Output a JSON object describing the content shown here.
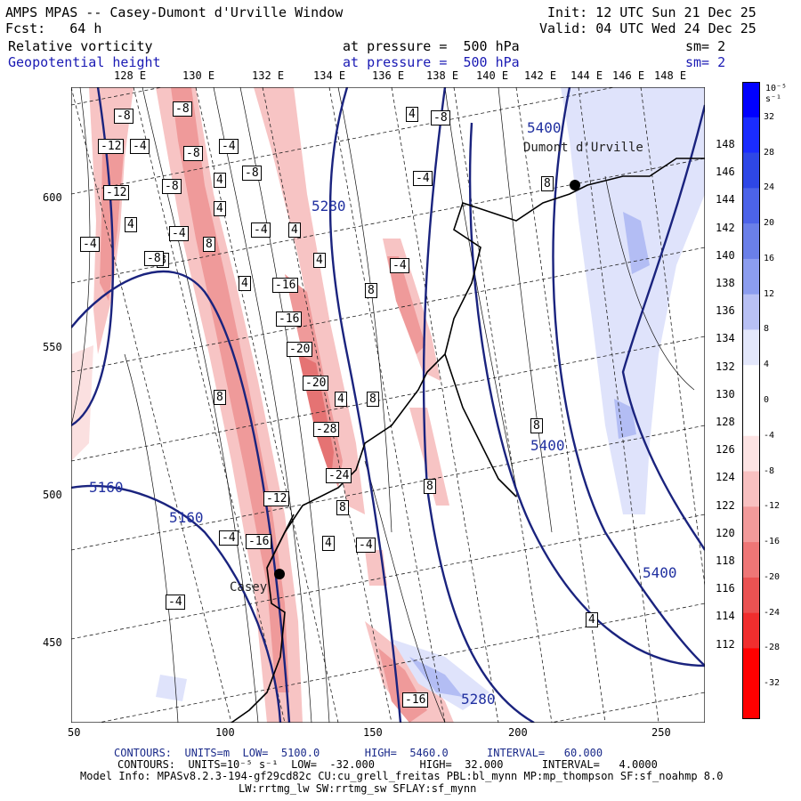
{
  "header": {
    "title": "AMPS MPAS -- Casey-Dumont d'Urville Window",
    "forecast": "Fcst:   64 h",
    "init": "Init: 12 UTC Sun 21 Dec 25",
    "valid": "Valid: 04 UTC Wed 24 Dec 25",
    "field1": {
      "name": "Relative vorticity",
      "level": "at pressure =  500 hPa",
      "sm": "sm= 2"
    },
    "field2": {
      "name": "Geopotential height",
      "level": "at pressure =  500 hPa",
      "sm": "sm= 2"
    }
  },
  "map": {
    "lon_labels": [
      "128 E",
      "130 E",
      "132 E",
      "134 E",
      "136 E",
      "138 E",
      "140 E",
      "142 E",
      "144 E",
      "146 E",
      "148 E"
    ],
    "lat_right_labels": [
      "148 E",
      "146 E",
      "144 E",
      "142 E",
      "140 E",
      "138 E",
      "136 E",
      "134 E",
      "132 E",
      "130 E",
      "128 E",
      "126 E",
      "124 E",
      "122 E",
      "120 E",
      "118 E",
      "116 E",
      "114 E",
      "112 E"
    ],
    "x_ticks": [
      "50",
      "100",
      "150",
      "200",
      "250"
    ],
    "y_ticks": [
      "600",
      "550",
      "500",
      "450"
    ],
    "stations": [
      {
        "name": "Dumont d'Urville"
      },
      {
        "name": "Casey"
      }
    ],
    "height_labels": [
      "5400",
      "5280",
      "5160",
      "5160",
      "5400",
      "5400",
      "5280"
    ],
    "vort_labels": [
      "-8",
      "-8",
      "-12",
      "-4",
      "-8",
      "-4",
      "-8",
      "-12",
      "-4",
      "4",
      "-8",
      "4",
      "-4",
      "4",
      "8",
      "-4",
      "4",
      "8",
      "-16",
      "4",
      "-8",
      "-16",
      "-20",
      "-20",
      "-28",
      "-24",
      "8",
      "-4",
      "8",
      "-4",
      "-16",
      "-12",
      "4",
      "8",
      "-4",
      "-4",
      "4",
      "-4",
      "-8",
      "8",
      "-16",
      "4",
      "4",
      "8",
      "8",
      "8",
      "4"
    ],
    "colors": {
      "height_contour": "#1a237e",
      "coast": "#000000",
      "negative_max": "#ff0000",
      "positive_max": "#0000ff"
    }
  },
  "colorbar": {
    "unit": "10⁻⁵ s⁻¹",
    "labels": [
      "32",
      "28",
      "24",
      "20",
      "16",
      "12",
      "8",
      "4",
      "0",
      "-4",
      "-8",
      "-12",
      "-16",
      "-20",
      "-24",
      "-28",
      "-32"
    ]
  },
  "footer": {
    "line1_a": "CONTOURS:  UNITS=m  LOW=  5100.0       HIGH=  5460.0      INTERVAL=   60.000",
    "line2_a": "CONTOURS:  UNITS=10⁻⁵ s⁻¹  LOW=  -32.000       HIGH=  32.000      INTERVAL=   4.0000",
    "line3": "Model Info: MPASv8.2.3-194-gf29cd82c CU:cu_grell_freitas PBL:bl_mynn MP:mp_thompson SF:sf_noahmp 8.0",
    "line4": "LW:rrtmg_lw SW:rrtmg_sw SFLAY:sf_mynn"
  }
}
